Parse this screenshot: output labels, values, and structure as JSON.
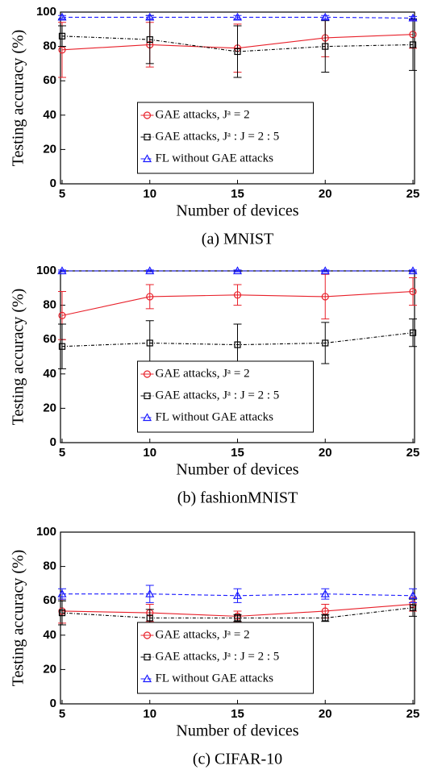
{
  "chart_data": [
    {
      "type": "line",
      "caption": "(a) MNIST",
      "xlabel": "Number of devices",
      "ylabel": "Testing accuracy (%)",
      "x": [
        5,
        10,
        15,
        20,
        25
      ],
      "xlim": [
        5,
        25
      ],
      "xticks": [
        5,
        10,
        15,
        20,
        25
      ],
      "ylim": [
        0,
        100
      ],
      "yticks": [
        0,
        20,
        40,
        60,
        80,
        100
      ],
      "legend": "lower center",
      "series": [
        {
          "name": "GAE attacks, Jᵃ = 2",
          "color": "#e8202a",
          "marker": "circle",
          "linestyle": "solid",
          "values": [
            78,
            81,
            79,
            85,
            87
          ],
          "errors": [
            16,
            13,
            14,
            11,
            8
          ]
        },
        {
          "name": "GAE attacks, Jᵃ : J = 2 : 5",
          "color": "#000000",
          "marker": "square",
          "linestyle": "dashdot",
          "values": [
            86,
            84,
            77,
            80,
            81
          ],
          "errors": [
            6,
            14,
            15,
            15,
            15
          ]
        },
        {
          "name": "FL without GAE attacks",
          "color": "#1a1aff",
          "marker": "triangle",
          "linestyle": "dashed",
          "values": [
            97,
            97,
            97,
            97,
            96.5
          ],
          "errors": [
            1,
            1,
            1,
            1,
            1
          ]
        }
      ]
    },
    {
      "type": "line",
      "caption": "(b) fashionMNIST",
      "xlabel": "Number of devices",
      "ylabel": "Testing accuracy (%)",
      "x": [
        5,
        10,
        15,
        20,
        25
      ],
      "xlim": [
        5,
        25
      ],
      "xticks": [
        5,
        10,
        15,
        20,
        25
      ],
      "ylim": [
        0,
        100
      ],
      "yticks": [
        0,
        20,
        40,
        60,
        80,
        100
      ],
      "legend": "lower center",
      "series": [
        {
          "name": "GAE attacks, Jᵃ = 2",
          "color": "#e8202a",
          "marker": "circle",
          "linestyle": "solid",
          "values": [
            74,
            85,
            86,
            85,
            88
          ],
          "errors": [
            14,
            7,
            6,
            13,
            8
          ]
        },
        {
          "name": "GAE attacks, Jᵃ : J = 2 : 5",
          "color": "#000000",
          "marker": "square",
          "linestyle": "dashdot",
          "values": [
            56,
            58,
            57,
            58,
            64
          ],
          "errors": [
            13,
            13,
            12,
            12,
            8
          ]
        },
        {
          "name": "FL without GAE attacks",
          "color": "#1a1aff",
          "marker": "triangle",
          "linestyle": "dashed",
          "values": [
            100,
            100,
            100,
            100,
            100
          ],
          "errors": [
            0.5,
            0.5,
            0.5,
            0.5,
            0.5
          ]
        }
      ]
    },
    {
      "type": "line",
      "caption": "(c) CIFAR-10",
      "xlabel": "Number of devices",
      "ylabel": "Testing accuracy (%)",
      "x": [
        5,
        10,
        15,
        20,
        25
      ],
      "xlim": [
        5,
        25
      ],
      "xticks": [
        5,
        10,
        15,
        20,
        25
      ],
      "ylim": [
        0,
        100
      ],
      "yticks": [
        0,
        20,
        40,
        60,
        80,
        100
      ],
      "legend": "lower center",
      "series": [
        {
          "name": "GAE attacks, Jᵃ = 2",
          "color": "#e8202a",
          "marker": "circle",
          "linestyle": "solid",
          "values": [
            54,
            53,
            51,
            54,
            58
          ],
          "errors": [
            7,
            5,
            3,
            4,
            4
          ]
        },
        {
          "name": "GAE attacks, Jᵃ : J = 2 : 5",
          "color": "#000000",
          "marker": "square",
          "linestyle": "dashdot",
          "values": [
            53,
            50,
            50,
            50,
            56
          ],
          "errors": [
            7,
            5,
            2,
            2,
            5
          ]
        },
        {
          "name": "FL without GAE attacks",
          "color": "#1a1aff",
          "marker": "triangle",
          "linestyle": "dashed",
          "values": [
            64,
            64,
            63,
            64,
            63
          ],
          "errors": [
            3,
            5,
            4,
            3,
            4
          ]
        }
      ]
    }
  ]
}
